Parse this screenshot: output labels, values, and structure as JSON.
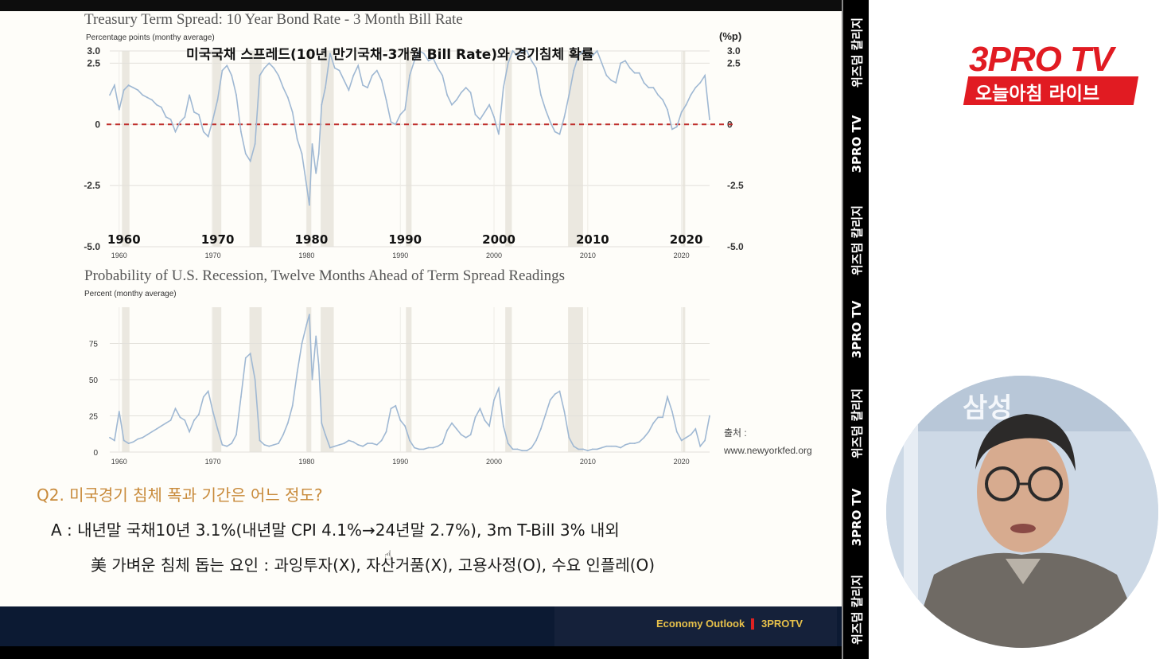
{
  "chart_data": [
    {
      "type": "line",
      "title": "Treasury Term Spread: 10 Year Bond Rate - 3 Month Bill Rate",
      "ylabel": "Percentage points (monthy average)",
      "ylabel_right": "(%p)",
      "ylim": [
        -5.0,
        3.0
      ],
      "xlim": [
        1959,
        2023
      ],
      "x_ticks": [
        "1960",
        "1970",
        "1980",
        "1990",
        "2000",
        "2010",
        "2020"
      ],
      "x_ticks_large": [
        "1960",
        "1970",
        "1980",
        "1990",
        "2000",
        "2010",
        "2020"
      ],
      "y_ticks_left": [
        "3.0",
        "2.5",
        "0",
        "-2.5",
        "-5.0"
      ],
      "y_ticks_right": [
        "3.0",
        "2.5",
        "0",
        "-2.5",
        "-5.0"
      ],
      "y_tick_values": [
        3.0,
        2.5,
        0,
        -2.5,
        -5.0
      ],
      "reference_line": {
        "y": 0,
        "style": "dashed",
        "color": "#c0302e"
      },
      "grid": true,
      "recessions": [
        [
          1960.3,
          1961.1
        ],
        [
          1969.9,
          1970.9
        ],
        [
          1973.9,
          1975.2
        ],
        [
          1980.0,
          1980.5
        ],
        [
          1981.5,
          1982.9
        ],
        [
          1990.6,
          1991.2
        ],
        [
          2001.2,
          2001.9
        ],
        [
          2007.9,
          2009.5
        ],
        [
          2020.1,
          2020.4
        ]
      ],
      "series": [
        {
          "color": "#9fb8d3",
          "x": [
            1959.0,
            1959.5,
            1960.0,
            1960.5,
            1961.0,
            1961.5,
            1962.0,
            1962.5,
            1963.0,
            1963.5,
            1964.0,
            1964.5,
            1965.0,
            1965.5,
            1966.0,
            1966.5,
            1967.0,
            1967.5,
            1968.0,
            1968.5,
            1969.0,
            1969.5,
            1970.0,
            1970.5,
            1971.0,
            1971.5,
            1972.0,
            1972.5,
            1973.0,
            1973.5,
            1974.0,
            1974.5,
            1975.0,
            1975.5,
            1976.0,
            1976.5,
            1977.0,
            1977.5,
            1978.0,
            1978.5,
            1979.0,
            1979.5,
            1980.0,
            1980.3,
            1980.6,
            1981.0,
            1981.3,
            1981.6,
            1982.0,
            1982.5,
            1983.0,
            1983.5,
            1984.0,
            1984.5,
            1985.0,
            1985.5,
            1986.0,
            1986.5,
            1987.0,
            1987.5,
            1988.0,
            1988.5,
            1989.0,
            1989.5,
            1990.0,
            1990.5,
            1991.0,
            1991.5,
            1992.0,
            1992.5,
            1993.0,
            1993.5,
            1994.0,
            1994.5,
            1995.0,
            1995.5,
            1996.0,
            1996.5,
            1997.0,
            1997.5,
            1998.0,
            1998.5,
            1999.0,
            1999.5,
            2000.0,
            2000.5,
            2001.0,
            2001.5,
            2002.0,
            2002.5,
            2003.0,
            2003.5,
            2004.0,
            2004.5,
            2005.0,
            2005.5,
            2006.0,
            2006.5,
            2007.0,
            2007.5,
            2008.0,
            2008.5,
            2009.0,
            2009.5,
            2010.0,
            2010.5,
            2011.0,
            2011.5,
            2012.0,
            2012.5,
            2013.0,
            2013.5,
            2014.0,
            2014.5,
            2015.0,
            2015.5,
            2016.0,
            2016.5,
            2017.0,
            2017.5,
            2018.0,
            2018.5,
            2019.0,
            2019.5,
            2020.0,
            2020.5,
            2021.0,
            2021.5,
            2022.0,
            2022.5,
            2023.0
          ],
          "y": [
            1.2,
            1.6,
            0.6,
            1.4,
            1.6,
            1.5,
            1.4,
            1.2,
            1.1,
            1.0,
            0.8,
            0.7,
            0.3,
            0.2,
            -0.3,
            0.1,
            0.3,
            1.2,
            0.5,
            0.4,
            -0.3,
            -0.5,
            0.2,
            1.0,
            2.2,
            2.4,
            2.0,
            1.2,
            -0.3,
            -1.2,
            -1.5,
            -0.8,
            2.0,
            2.3,
            2.5,
            2.3,
            2.0,
            1.5,
            1.1,
            0.5,
            -0.6,
            -1.2,
            -2.5,
            -3.3,
            -0.8,
            -2.0,
            -1.2,
            0.8,
            1.5,
            2.9,
            2.3,
            2.2,
            1.8,
            1.4,
            2.0,
            2.4,
            1.6,
            1.5,
            2.0,
            2.2,
            1.8,
            1.0,
            0.1,
            0.0,
            0.4,
            0.6,
            2.0,
            2.6,
            3.0,
            2.9,
            2.6,
            2.7,
            2.3,
            2.0,
            1.2,
            0.8,
            1.0,
            1.3,
            1.5,
            1.3,
            0.4,
            0.2,
            0.5,
            0.8,
            0.3,
            -0.4,
            1.5,
            2.5,
            3.0,
            2.8,
            3.0,
            3.0,
            2.6,
            2.3,
            1.2,
            0.6,
            0.1,
            -0.3,
            -0.4,
            0.3,
            1.2,
            2.2,
            2.8,
            3.0,
            2.9,
            2.8,
            3.0,
            2.5,
            2.0,
            1.8,
            1.7,
            2.5,
            2.6,
            2.3,
            2.1,
            2.1,
            1.7,
            1.5,
            1.5,
            1.2,
            1.0,
            0.6,
            -0.2,
            -0.1,
            0.5,
            0.8,
            1.2,
            1.5,
            1.7,
            2.0,
            0.2
          ]
        }
      ]
    },
    {
      "type": "line",
      "title": "Probability of U.S. Recession, Twelve Months Ahead of Term Spread Readings",
      "ylabel": "Percent (monthy average)",
      "ylim": [
        0,
        100
      ],
      "xlim": [
        1959,
        2023
      ],
      "x_ticks": [
        "1960",
        "1970",
        "1980",
        "1990",
        "2000",
        "2010",
        "2020"
      ],
      "y_ticks": [
        "75",
        "50",
        "25",
        "0"
      ],
      "y_tick_values": [
        75,
        50,
        25,
        0
      ],
      "grid": true,
      "recessions": [
        [
          1960.3,
          1961.1
        ],
        [
          1969.9,
          1970.9
        ],
        [
          1973.9,
          1975.2
        ],
        [
          1980.0,
          1980.5
        ],
        [
          1981.5,
          1982.9
        ],
        [
          1990.6,
          1991.2
        ],
        [
          2001.2,
          2001.9
        ],
        [
          2007.9,
          2009.5
        ],
        [
          2020.1,
          2020.4
        ]
      ],
      "series": [
        {
          "color": "#9fb8d3",
          "x": [
            1959.0,
            1959.5,
            1960.0,
            1960.5,
            1961.0,
            1961.5,
            1962.0,
            1962.5,
            1963.0,
            1963.5,
            1964.0,
            1964.5,
            1965.0,
            1965.5,
            1966.0,
            1966.5,
            1967.0,
            1967.5,
            1968.0,
            1968.5,
            1969.0,
            1969.5,
            1970.0,
            1970.5,
            1971.0,
            1971.5,
            1972.0,
            1972.5,
            1973.0,
            1973.5,
            1974.0,
            1974.5,
            1975.0,
            1975.5,
            1976.0,
            1976.5,
            1977.0,
            1977.5,
            1978.0,
            1978.5,
            1979.0,
            1979.5,
            1980.0,
            1980.3,
            1980.6,
            1981.0,
            1981.3,
            1981.6,
            1982.0,
            1982.5,
            1983.0,
            1983.5,
            1984.0,
            1984.5,
            1985.0,
            1985.5,
            1986.0,
            1986.5,
            1987.0,
            1987.5,
            1988.0,
            1988.5,
            1989.0,
            1989.5,
            1990.0,
            1990.5,
            1991.0,
            1991.5,
            1992.0,
            1992.5,
            1993.0,
            1993.5,
            1994.0,
            1994.5,
            1995.0,
            1995.5,
            1996.0,
            1996.5,
            1997.0,
            1997.5,
            1998.0,
            1998.5,
            1999.0,
            1999.5,
            2000.0,
            2000.5,
            2001.0,
            2001.5,
            2002.0,
            2002.5,
            2003.0,
            2003.5,
            2004.0,
            2004.5,
            2005.0,
            2005.5,
            2006.0,
            2006.5,
            2007.0,
            2007.5,
            2008.0,
            2008.5,
            2009.0,
            2009.5,
            2010.0,
            2010.5,
            2011.0,
            2011.5,
            2012.0,
            2012.5,
            2013.0,
            2013.5,
            2014.0,
            2014.5,
            2015.0,
            2015.5,
            2016.0,
            2016.5,
            2017.0,
            2017.5,
            2018.0,
            2018.5,
            2019.0,
            2019.5,
            2020.0,
            2020.5,
            2021.0,
            2021.5,
            2022.0,
            2022.5,
            2023.0
          ],
          "y": [
            10,
            8,
            28,
            8,
            6,
            7,
            9,
            10,
            12,
            14,
            16,
            18,
            20,
            22,
            30,
            24,
            22,
            14,
            22,
            26,
            38,
            42,
            28,
            16,
            5,
            4,
            6,
            12,
            38,
            65,
            68,
            50,
            8,
            5,
            4,
            5,
            6,
            12,
            20,
            32,
            55,
            75,
            88,
            95,
            50,
            80,
            60,
            20,
            12,
            3,
            4,
            5,
            6,
            8,
            7,
            5,
            4,
            6,
            6,
            5,
            8,
            14,
            30,
            32,
            22,
            18,
            8,
            3,
            2,
            2,
            3,
            3,
            4,
            6,
            15,
            20,
            16,
            12,
            10,
            12,
            24,
            30,
            22,
            18,
            36,
            44,
            18,
            6,
            2,
            2,
            1,
            1,
            3,
            8,
            16,
            26,
            36,
            40,
            42,
            28,
            10,
            4,
            2,
            2,
            1,
            2,
            2,
            3,
            4,
            4,
            4,
            3,
            5,
            6,
            6,
            7,
            10,
            14,
            20,
            24,
            24,
            38,
            28,
            14,
            8,
            10,
            12,
            16,
            4,
            8,
            25
          ]
        }
      ]
    }
  ],
  "headline_kr": "미국국채 스프레드(10년 만기국채-3개월 Bill Rate)와 경기침체 확률",
  "source_label": "출처 :",
  "source_url": "www.newyorkfed.org",
  "q2": "Q2. 미국경기 침체 폭과 기간은 어느 정도?",
  "a1": "A :  내년말 국채10년 3.1%(내년말 CPI 4.1%→24년말 2.7%), 3m T-Bill 3% 내외",
  "a2": "美 가벼운 침체 돕는 요인 : 과잉투자(X), 자산거품(X), 고용사정(O), 수요 인플레(O)",
  "footer_left": "Economy Outlook",
  "footer_right": "3PROTV",
  "sidebar_texts": [
    "위즈덤 칼리지",
    "3PRO TV",
    "위즈덤 칼리지",
    "3PRO TV",
    "위즈덤 칼리지",
    "3PRO TV",
    "위즈덤 칼리지"
  ],
  "logo_main": "3PRO TV",
  "logo_sub": "오늘아침 라이브",
  "cam_bg_text": "삼성",
  "colors": {
    "accent": "#e11b22",
    "question": "#c88a3a",
    "line": "#9fb8d3",
    "zero_line": "#c0302e"
  }
}
